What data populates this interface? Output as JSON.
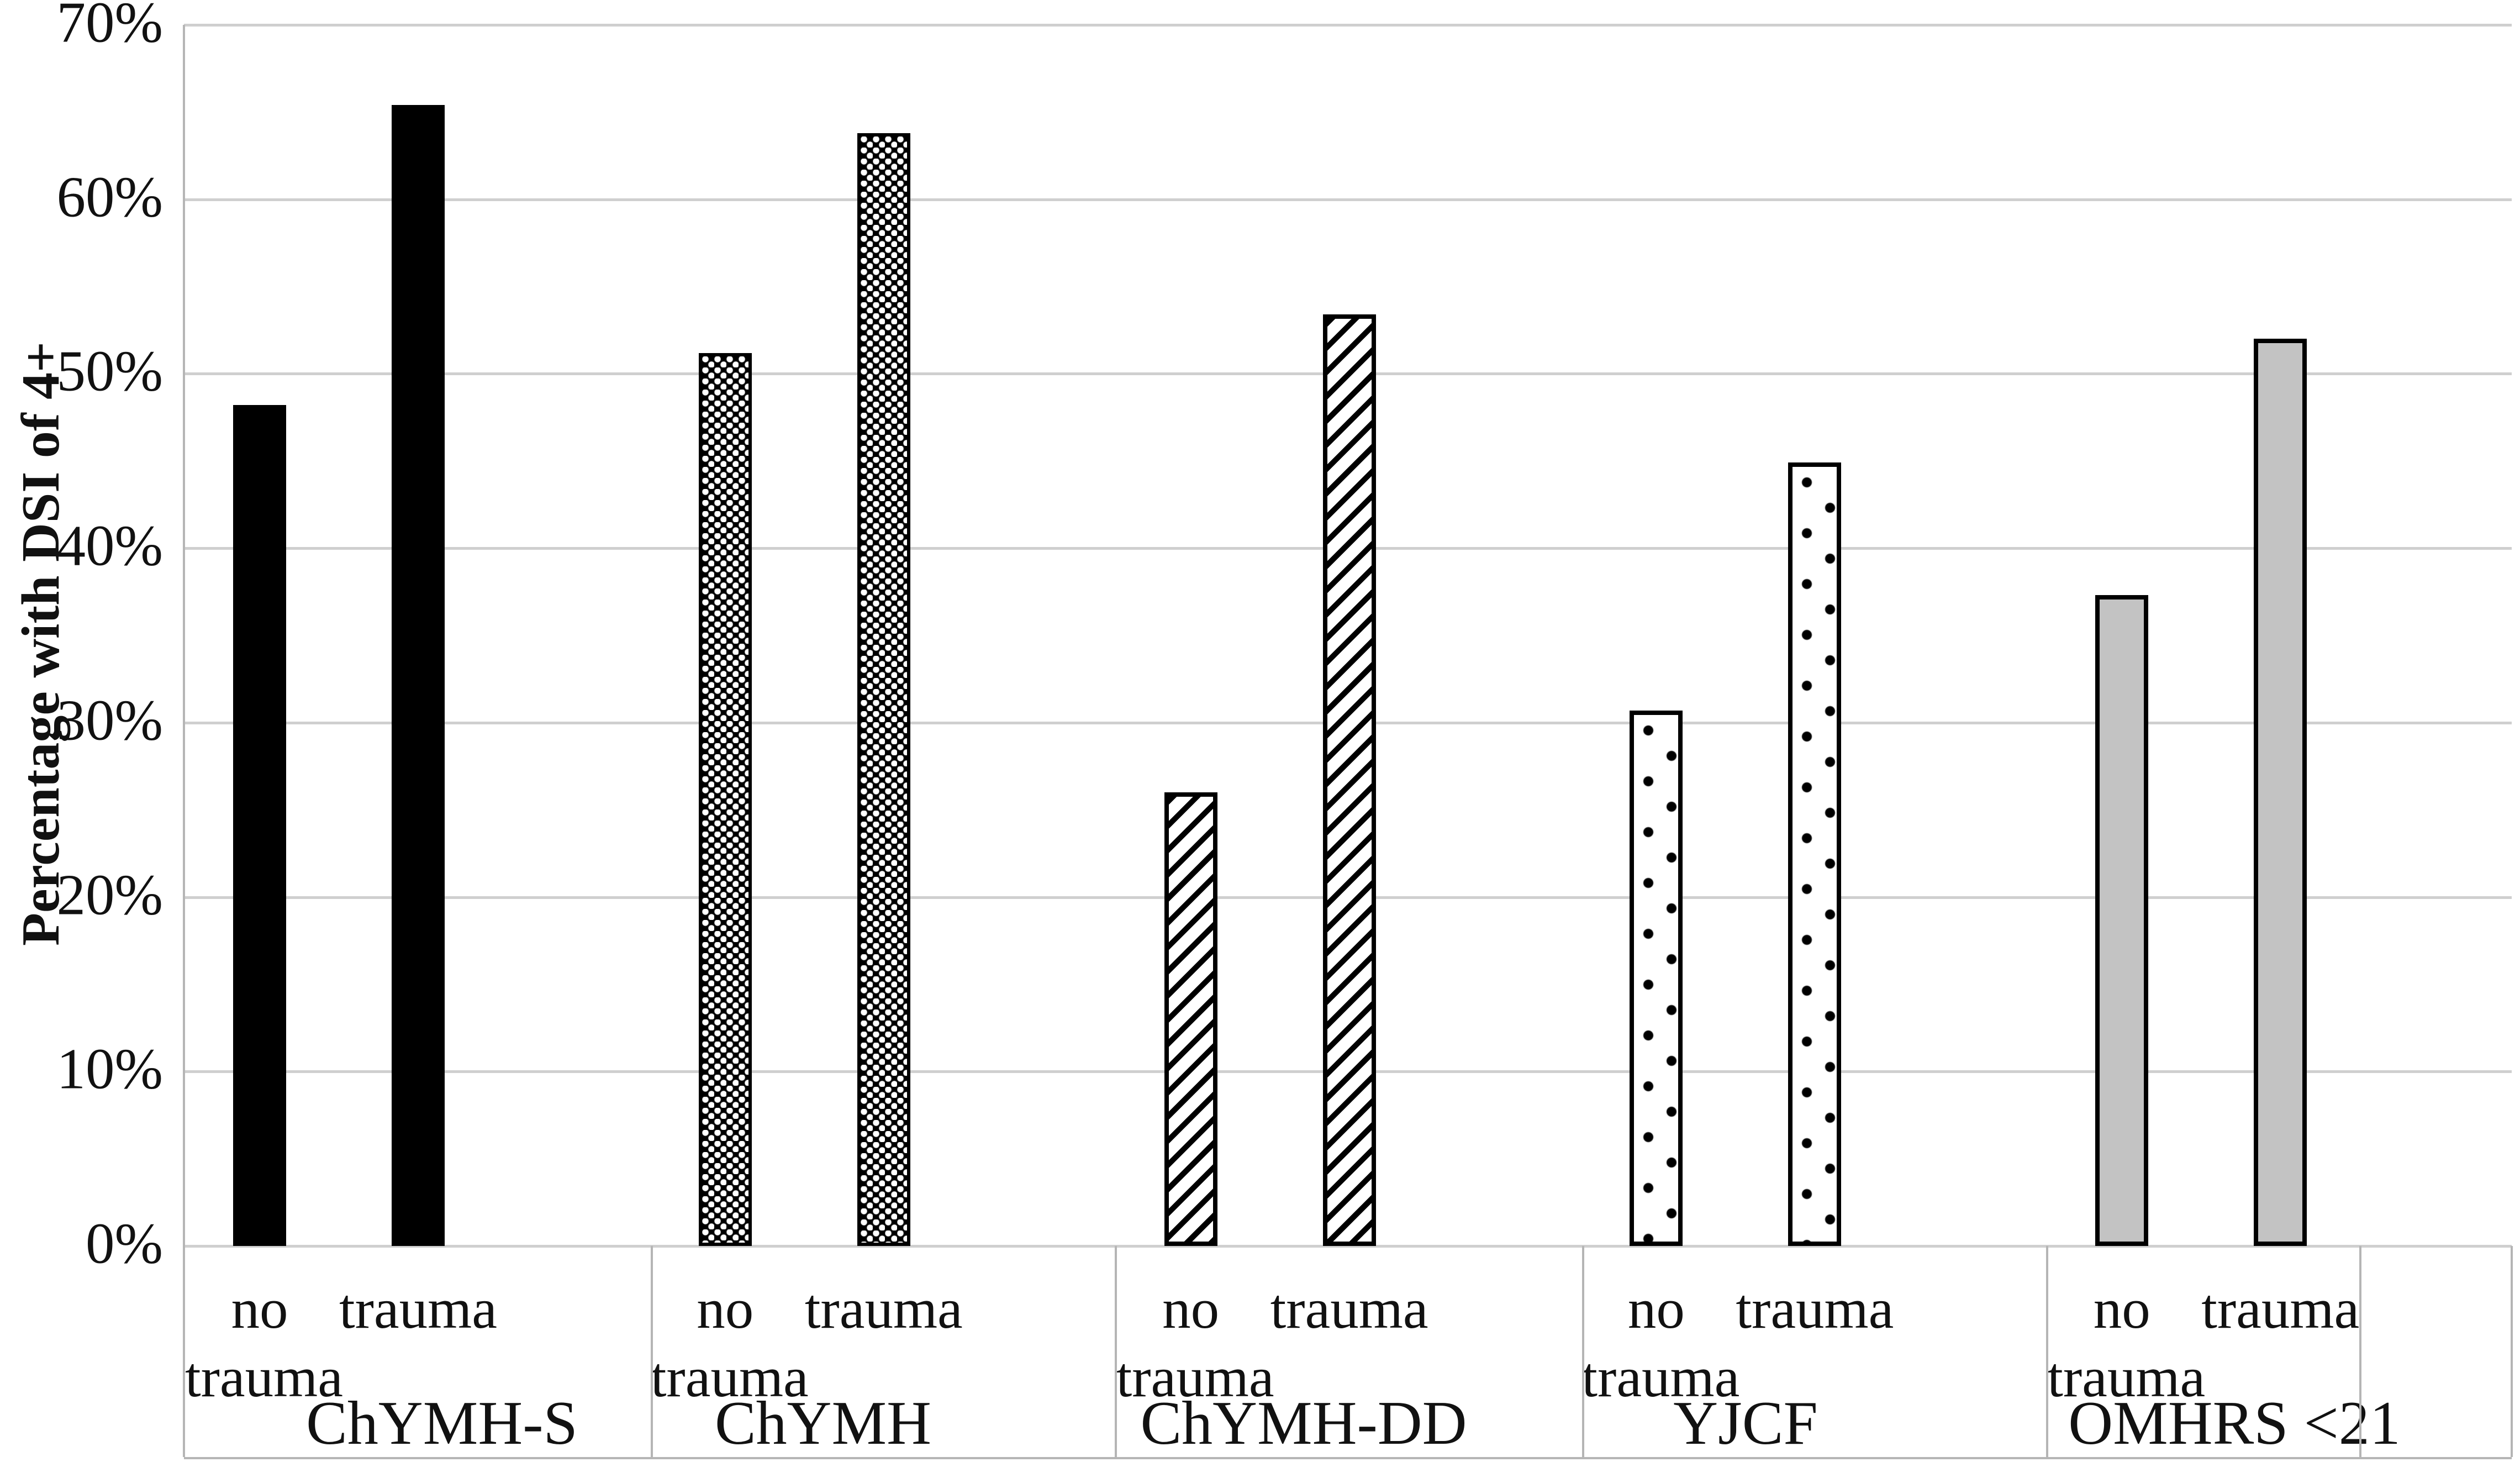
{
  "chart_data": {
    "type": "bar",
    "title": "",
    "ylabel": "Percentage with DSI of 4+",
    "xlabel": "",
    "ylim": [
      0,
      70
    ],
    "ytick_step": 10,
    "yticks": [
      "0%",
      "10%",
      "20%",
      "30%",
      "40%",
      "50%",
      "60%",
      "70%"
    ],
    "grid": true,
    "legend_position": "none",
    "series": [
      "no trauma",
      "trauma"
    ],
    "series_sublabel_lines": {
      "no_trauma": [
        "no",
        "trauma"
      ],
      "trauma": [
        "trauma"
      ]
    },
    "categories": [
      "ChYMH-S",
      "ChYMH",
      "ChYMH-DD",
      "YJCF",
      "OMHRS <21"
    ],
    "groups": [
      {
        "label": "ChYMH-S",
        "pattern": "solid-black",
        "values": [
          48.2,
          65.4
        ]
      },
      {
        "label": "ChYMH",
        "pattern": "dense-dots",
        "values": [
          51.2,
          63.8
        ]
      },
      {
        "label": "ChYMH-DD",
        "pattern": "diag-hatch",
        "values": [
          26.0,
          53.4
        ]
      },
      {
        "label": "YJCF",
        "pattern": "sparse-dots",
        "values": [
          30.7,
          44.9
        ]
      },
      {
        "label": "OMHRS <21",
        "pattern": "solid-gray",
        "values": [
          37.3,
          52.0
        ]
      }
    ],
    "colors": {
      "bar_black": "#000000",
      "bar_gray": "#c3c3c3",
      "pattern_contrast": "#ffffff",
      "gridline": "#cfcfcf",
      "frame_line": "#b5b5b5",
      "text": "#111111"
    }
  }
}
